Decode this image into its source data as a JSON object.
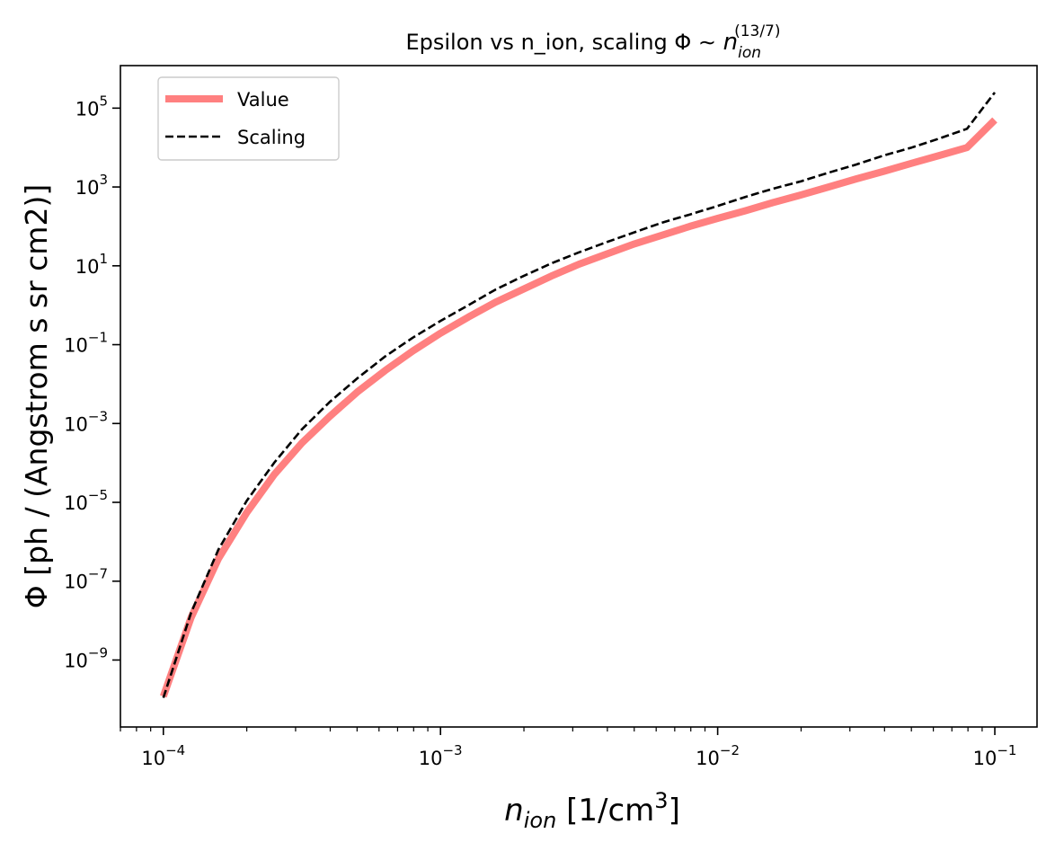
{
  "chart_data": {
    "type": "line",
    "title": {
      "main": "Epsilon vs n_ion, scaling Φ ∼ ",
      "var": "n",
      "sub": "ion",
      "sup": "(13/7)"
    },
    "xlabel": {
      "var": "n",
      "sub": "ion",
      "rest": " [1/cm",
      "sup": "3",
      "close": "]"
    },
    "ylabel": "Φ [ph / (Angstrom s sr cm2)]",
    "xscale": "log",
    "yscale": "log",
    "xlim": [
      7e-05,
      0.142
    ],
    "ylim": [
      2e-11,
      1200000.0
    ],
    "grid": false,
    "legend_position": "top-left",
    "x_ticks": [
      {
        "value": 0.0001,
        "base": "10",
        "exp": "−4"
      },
      {
        "value": 0.001,
        "base": "10",
        "exp": "−3"
      },
      {
        "value": 0.01,
        "base": "10",
        "exp": "−2"
      },
      {
        "value": 0.1,
        "base": "10",
        "exp": "−1"
      }
    ],
    "y_ticks": [
      {
        "value": 1e-09,
        "base": "10",
        "exp": "−9"
      },
      {
        "value": 1e-07,
        "base": "10",
        "exp": "−7"
      },
      {
        "value": 1e-05,
        "base": "10",
        "exp": "−5"
      },
      {
        "value": 0.001,
        "base": "10",
        "exp": "−3"
      },
      {
        "value": 0.1,
        "base": "10",
        "exp": "−1"
      },
      {
        "value": 10.0,
        "base": "10",
        "exp": "1"
      },
      {
        "value": 1000.0,
        "base": "10",
        "exp": "3"
      },
      {
        "value": 100000.0,
        "base": "10",
        "exp": "5"
      }
    ],
    "series": [
      {
        "name": "Value",
        "color": "#ff8080",
        "style": "solid",
        "x": [
          0.0001,
          0.000126,
          0.000158,
          0.0002,
          0.000251,
          0.000316,
          0.000398,
          0.000501,
          0.000631,
          0.000794,
          0.001,
          0.00126,
          0.00158,
          0.002,
          0.00251,
          0.00316,
          0.00398,
          0.00501,
          0.00631,
          0.00794,
          0.01,
          0.0126,
          0.0158,
          0.02,
          0.0251,
          0.0316,
          0.0398,
          0.0501,
          0.0631,
          0.0794,
          0.1
        ],
        "y": [
          1.2e-10,
          1.2e-08,
          3.7e-07,
          5.5e-06,
          5e-05,
          0.00032,
          0.0015,
          0.0063,
          0.022,
          0.069,
          0.195,
          0.5,
          1.2,
          2.6,
          5.5,
          11.0,
          20.0,
          36.0,
          60.0,
          100.0,
          160.0,
          250.0,
          400.0,
          630.0,
          1000.0,
          1600.0,
          2500.0,
          4000.0,
          6300.0,
          10000.0,
          50000.0
        ]
      },
      {
        "name": "Scaling",
        "color": "#000000",
        "style": "dashed",
        "x": [
          0.0001,
          0.000126,
          0.000158,
          0.0002,
          0.000251,
          0.000316,
          0.000398,
          0.000501,
          0.000631,
          0.000794,
          0.001,
          0.00126,
          0.00158,
          0.002,
          0.00251,
          0.00316,
          0.00398,
          0.00501,
          0.00631,
          0.00794,
          0.01,
          0.0126,
          0.0158,
          0.02,
          0.0251,
          0.0316,
          0.0398,
          0.0501,
          0.0631,
          0.0794,
          0.1
        ],
        "y": [
          1.1e-10,
          1.6e-08,
          6.3e-07,
          1.1e-05,
          0.0001,
          0.00071,
          0.0035,
          0.014,
          0.05,
          0.15,
          0.4,
          1.0,
          2.5,
          5.6,
          11.5,
          22.0,
          40.0,
          71.0,
          125.0,
          200.0,
          330.0,
          560.0,
          900.0,
          1400.0,
          2300.0,
          3700.0,
          6300.0,
          10000.0,
          17000.0,
          30000.0,
          250000.0
        ]
      }
    ]
  }
}
